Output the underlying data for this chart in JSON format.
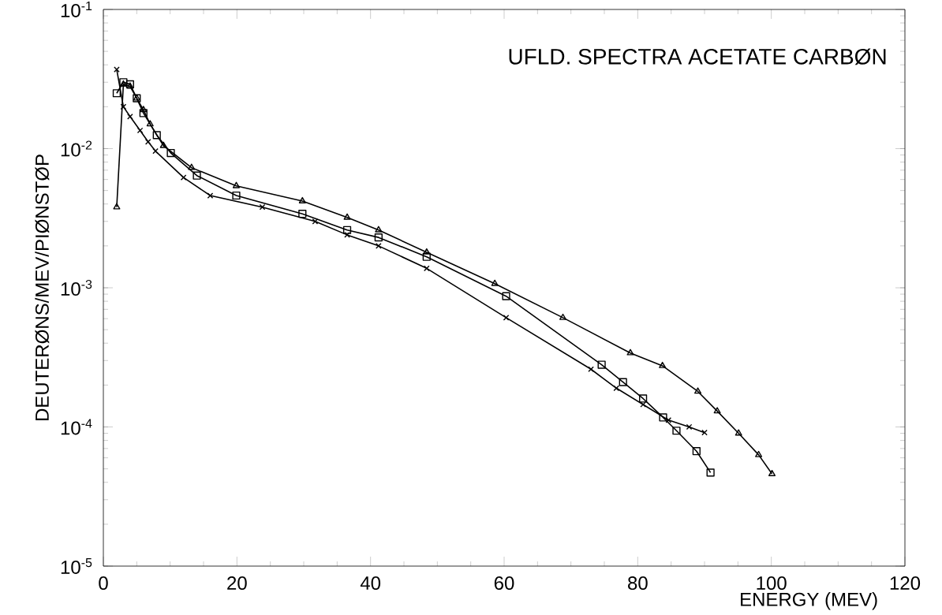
{
  "chart_data": {
    "type": "line",
    "title": "UFLD. SPECTRA ACETATE CARBØN",
    "xlabel": "ENERGY (MEV)",
    "ylabel": "DEUTERØNS/MEV/PIØNSTØP",
    "log": "y",
    "line_style": "solid",
    "xlim": [
      0,
      120
    ],
    "xticks": [
      0,
      20,
      40,
      60,
      80,
      100,
      120
    ],
    "ylim": [
      1e-05,
      0.1
    ],
    "yticks": [
      {
        "value": 1e-05,
        "label": "10$^{-5}$"
      },
      {
        "value": 0.0001,
        "label": "10$^{-4}$"
      },
      {
        "value": 0.001,
        "label": "10$^{-3}$"
      },
      {
        "value": 0.01,
        "label": "10$^{-2}$"
      },
      {
        "value": 0.1,
        "label": "10$^{-1}$"
      }
    ],
    "series": [
      {
        "color": "#000000",
        "marker": "triangle",
        "x": [
          2,
          3,
          4,
          5,
          6,
          7,
          9,
          13.2,
          19.9,
          29.8,
          36.5,
          41.2,
          48.4,
          58.6,
          68.8,
          78.9,
          83.7,
          89,
          91.9,
          95.1,
          98.1,
          100.1
        ],
        "values": [
          0.0038,
          0.029,
          0.028,
          0.023,
          0.019,
          0.015,
          0.0105,
          0.0073,
          0.0054,
          0.0042,
          0.0032,
          0.0026,
          0.0018,
          0.00107,
          0.00061,
          0.00034,
          0.000275,
          0.00018,
          0.00013,
          9e-05,
          6.3e-05,
          4.6e-05
        ]
      },
      {
        "color": "#000000",
        "marker": "square",
        "x": [
          2,
          3,
          4,
          5,
          6,
          8,
          10.1,
          14,
          19.9,
          29.8,
          36.5,
          41.2,
          48.4,
          60.3,
          74.6,
          77.8,
          80.8,
          83.8,
          85.8,
          88.8,
          90.9
        ],
        "values": [
          0.025,
          0.03,
          0.029,
          0.023,
          0.018,
          0.0125,
          0.0093,
          0.0064,
          0.0046,
          0.0034,
          0.0026,
          0.0023,
          0.00167,
          0.00087,
          0.00028,
          0.00021,
          0.00016,
          0.000117,
          9.4e-05,
          6.7e-05,
          4.7e-05
        ]
      },
      {
        "color": "#000000",
        "marker": "cross",
        "x": [
          2,
          3,
          4,
          5.5,
          6.7,
          7.8,
          12,
          16,
          23.8,
          31.7,
          36.5,
          41.2,
          48.4,
          60.3,
          73,
          76.8,
          80.8,
          84.6,
          87.7,
          90
        ],
        "values": [
          0.037,
          0.02,
          0.017,
          0.0135,
          0.0112,
          0.0096,
          0.0062,
          0.0046,
          0.0038,
          0.003,
          0.0024,
          0.002,
          0.00138,
          0.00061,
          0.00026,
          0.00019,
          0.000145,
          0.000112,
          0.0001,
          9.1e-05
        ]
      }
    ]
  }
}
